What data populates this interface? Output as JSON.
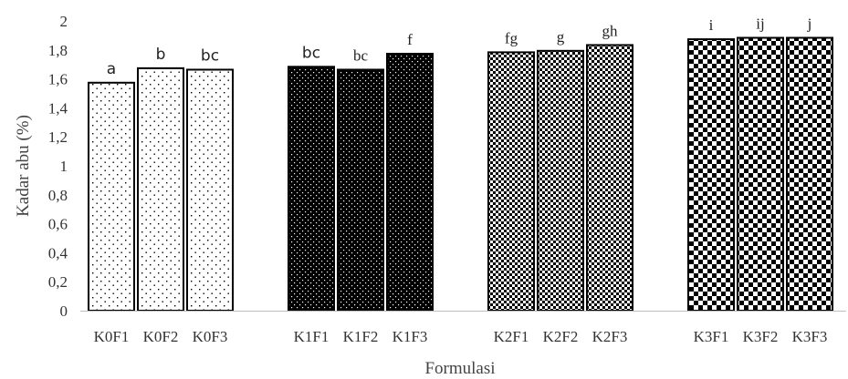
{
  "chart_data": {
    "type": "bar",
    "title": "",
    "xlabel": "Formulasi",
    "ylabel": "Kadar abu (%)",
    "ylim": [
      0,
      2
    ],
    "yticks": [
      "0",
      "0,2",
      "0,4",
      "0,6",
      "0,8",
      "1",
      "1,2",
      "1,4",
      "1,6",
      "1,8",
      "2"
    ],
    "grid": false,
    "legend": "none",
    "groups": [
      {
        "pattern": "sparse-dots",
        "bars": [
          {
            "category": "K0F1",
            "value": 1.58,
            "label": "a"
          },
          {
            "category": "K0F2",
            "value": 1.68,
            "label": "b"
          },
          {
            "category": "K0F3",
            "value": 1.67,
            "label": "bc"
          }
        ]
      },
      {
        "pattern": "dense-black-dots",
        "bars": [
          {
            "category": "K1F1",
            "value": 1.69,
            "label": "bc"
          },
          {
            "category": "K1F2",
            "value": 1.67,
            "label": "bc"
          },
          {
            "category": "K1F3",
            "value": 1.78,
            "label": "f"
          }
        ]
      },
      {
        "pattern": "small-checker",
        "bars": [
          {
            "category": "K2F1",
            "value": 1.79,
            "label": "fg"
          },
          {
            "category": "K2F2",
            "value": 1.8,
            "label": "g"
          },
          {
            "category": "K2F3",
            "value": 1.84,
            "label": "gh"
          }
        ]
      },
      {
        "pattern": "large-checker",
        "bars": [
          {
            "category": "K3F1",
            "value": 1.88,
            "label": "i"
          },
          {
            "category": "K3F2",
            "value": 1.89,
            "label": "ij"
          },
          {
            "category": "K3F3",
            "value": 1.89,
            "label": "j"
          }
        ]
      }
    ]
  },
  "colors": {
    "bar_outline": "#000000",
    "axis_line": "#bfbfbf",
    "text": "#333333"
  }
}
